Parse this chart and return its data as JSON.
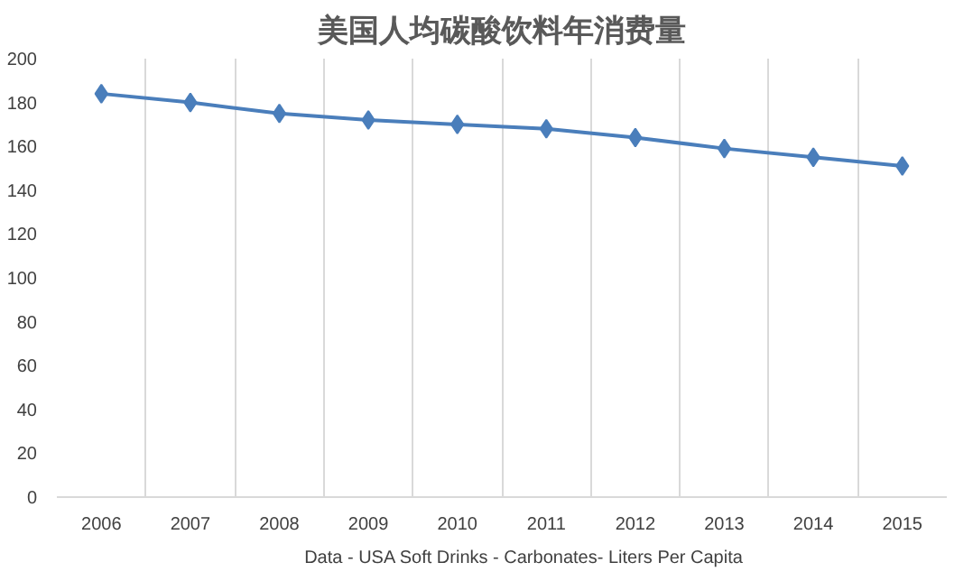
{
  "chart_data": {
    "type": "line",
    "title": "美国人均碳酸饮料年消费量",
    "categories": [
      "2006",
      "2007",
      "2008",
      "2009",
      "2010",
      "2011",
      "2012",
      "2013",
      "2014",
      "2015"
    ],
    "series": [
      {
        "name": "Data - USA Soft Drinks - Carbonates- Liters Per Capita",
        "color": "#4a7ebb",
        "values": [
          184,
          180,
          175,
          172,
          170,
          168,
          164,
          159,
          155,
          151
        ]
      }
    ],
    "ylim": [
      0,
      200
    ],
    "yticks": [
      0,
      20,
      40,
      60,
      80,
      100,
      120,
      140,
      160,
      180,
      200
    ],
    "grid": "x",
    "legend": "bottom",
    "marker": "diamond",
    "line_style": "solid"
  }
}
